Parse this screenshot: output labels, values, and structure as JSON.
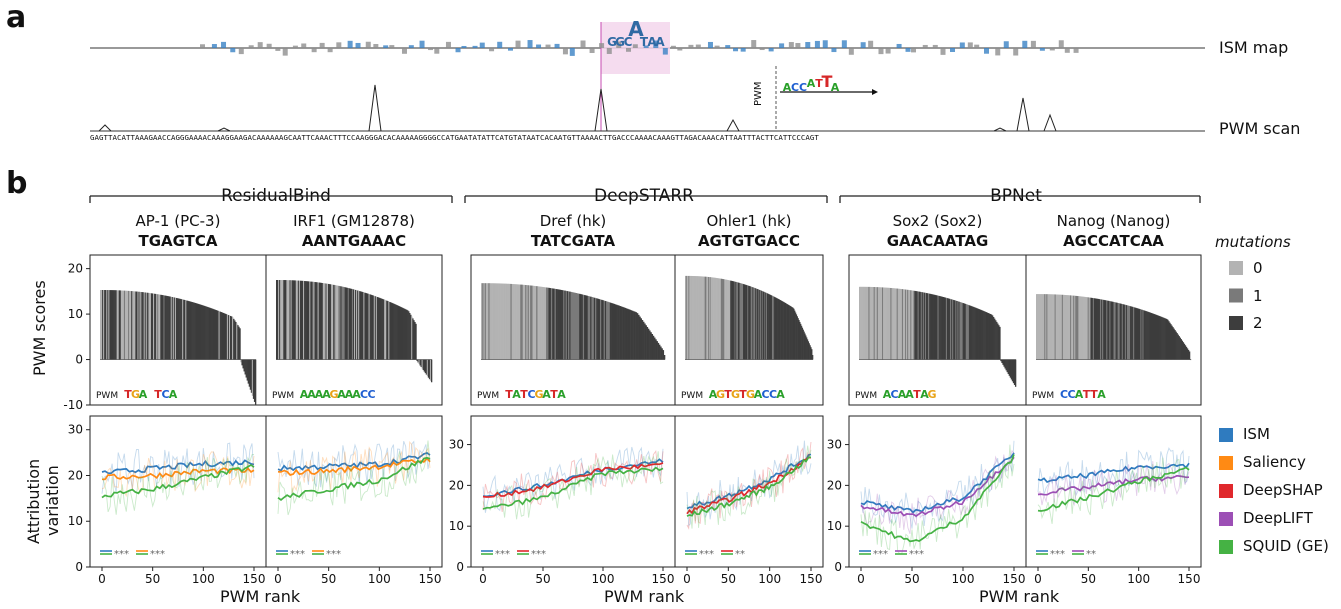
{
  "panel_a": {
    "letter": "a",
    "row_labels": [
      "ISM map",
      "PWM scan"
    ],
    "inset_label": "PWM",
    "sequence": "GAGTTACATTAAAGAACCAGGGAAAACAAAGGAAGACAAAAAAGCAATTCAAACTTTCCAAGGGACACAAAAAGGGGCCATGAATATATTCATGTATAATCACAATGTTAAAACTTGACCCAAAACAAAGTTAGACAAACATTAATTTACTTCATTCCCAGT"
  },
  "panel_b": {
    "letter": "b",
    "groups": [
      "ResidualBind",
      "DeepSTARR",
      "BPNet"
    ],
    "columns": [
      {
        "title": "AP-1 (PC-3)",
        "motif": "TGAGTCA",
        "logo": "TGA TCA"
      },
      {
        "title": "IRF1 (GM12878)",
        "motif": "AANTGAAAC",
        "logo": "AAAAGAAACC"
      },
      {
        "title": "Dref (hk)",
        "motif": "TATCGATA",
        "logo": "TATCGATA"
      },
      {
        "title": "Ohler1 (hk)",
        "motif": "AGTGTGACC",
        "logo": "AGTGTGACCA"
      },
      {
        "title": "Sox2 (Sox2)",
        "motif": "GAACAATAG",
        "logo": "ACAATAG"
      },
      {
        "title": "Nanog (Nanog)",
        "motif": "AGCCATCAA",
        "logo": "CCATTA"
      }
    ],
    "pwm_label": "PWM",
    "top_ylabel": "PWM scores",
    "bottom_ylabel_lines": [
      "Attribution",
      "variation"
    ],
    "xlabel": "PWM rank",
    "mutations_title": "mutations",
    "mutations_levels": [
      "0",
      "1",
      "2"
    ],
    "mutation_colors": [
      "#b3b3b3",
      "#7a7a7a",
      "#3d3d3d"
    ],
    "methods": [
      {
        "name": "ISM",
        "color": "#2f7bbf"
      },
      {
        "name": "Saliency",
        "color": "#ff8a14"
      },
      {
        "name": "DeepSHAP",
        "color": "#e0282c"
      },
      {
        "name": "DeepLIFT",
        "color": "#9c4fb5"
      },
      {
        "name": "SQUID (GE)",
        "color": "#45b244"
      }
    ],
    "significance": [
      [
        "***",
        "***"
      ],
      [
        "***",
        "***"
      ],
      [
        "***",
        "***"
      ],
      [
        "***",
        "**"
      ],
      [
        "***",
        "***"
      ],
      [
        "***",
        "**"
      ]
    ]
  },
  "chart_data": [
    {
      "type": "bar",
      "title": "PWM scores",
      "ylim": [
        -10,
        23
      ],
      "yticks": [
        -10,
        0,
        10,
        20
      ],
      "series": [
        {
          "name": "AP-1 (PC-3)",
          "n": 150,
          "start": 15.3,
          "end": -10
        },
        {
          "name": "IRF1 (GM12878)",
          "n": 150,
          "start": 17.5,
          "end": -5
        },
        {
          "name": "Dref (hk)",
          "n": 150,
          "start": 16.8,
          "end": 1
        },
        {
          "name": "Ohler1 (hk)",
          "n": 150,
          "start": 18.4,
          "end": 1
        },
        {
          "name": "Sox2 (Sox2)",
          "n": 150,
          "start": 16.0,
          "end": -6
        },
        {
          "name": "Nanog (Nanog)",
          "n": 150,
          "start": 14.4,
          "end": 0
        }
      ]
    },
    {
      "type": "line",
      "xlabel": "PWM rank",
      "ylabel": "Attribution variation",
      "x": [
        0,
        50,
        100,
        150
      ],
      "panels": [
        {
          "ylim": [
            0,
            33
          ],
          "yticks": [
            0,
            10,
            20,
            30
          ],
          "series": [
            {
              "name": "ISM",
              "values": [
                20.5,
                21.5,
                22.5,
                23
              ]
            },
            {
              "name": "Saliency",
              "values": [
                19.5,
                20,
                21,
                21
              ]
            },
            {
              "name": "SQUID (GE)",
              "values": [
                15.5,
                17,
                19.5,
                22
              ]
            }
          ]
        },
        {
          "ylim": [
            0,
            33
          ],
          "yticks": [
            0,
            10,
            20,
            30
          ],
          "series": [
            {
              "name": "ISM",
              "values": [
                21.5,
                22,
                22.5,
                24.5
              ]
            },
            {
              "name": "Saliency",
              "values": [
                20.5,
                21,
                22,
                23.5
              ]
            },
            {
              "name": "SQUID (GE)",
              "values": [
                15,
                17,
                19,
                24
              ]
            }
          ]
        },
        {
          "ylim": [
            0,
            37
          ],
          "yticks": [
            0,
            10,
            20,
            30
          ],
          "series": [
            {
              "name": "ISM",
              "values": [
                17.5,
                20,
                24,
                26
              ]
            },
            {
              "name": "DeepSHAP",
              "values": [
                17,
                19.5,
                24,
                25
              ]
            },
            {
              "name": "SQUID (GE)",
              "values": [
                14,
                17,
                23,
                24
              ]
            }
          ]
        },
        {
          "ylim": [
            0,
            37
          ],
          "yticks": [
            0,
            10,
            20,
            30
          ],
          "series": [
            {
              "name": "ISM",
              "values": [
                14.5,
                17.5,
                21.5,
                27.5
              ]
            },
            {
              "name": "DeepSHAP",
              "values": [
                13.5,
                16.5,
                20.5,
                27
              ]
            },
            {
              "name": "SQUID (GE)",
              "values": [
                12.5,
                15.5,
                19.5,
                27
              ]
            }
          ]
        },
        {
          "ylim": [
            0,
            37
          ],
          "yticks": [
            0,
            10,
            20,
            30
          ],
          "series": [
            {
              "name": "ISM",
              "values": [
                16,
                13.5,
                17,
                28
              ]
            },
            {
              "name": "DeepLIFT",
              "values": [
                15,
                12.5,
                16,
                27
              ]
            },
            {
              "name": "SQUID (GE)",
              "values": [
                11,
                6,
                12,
                27
              ]
            }
          ]
        },
        {
          "ylim": [
            0,
            37
          ],
          "yticks": [
            0,
            10,
            20,
            30
          ],
          "series": [
            {
              "name": "ISM",
              "values": [
                21,
                22.5,
                24.5,
                25
              ]
            },
            {
              "name": "DeepLIFT",
              "values": [
                18,
                19.5,
                21.5,
                22
              ]
            },
            {
              "name": "SQUID (GE)",
              "values": [
                14,
                17,
                21,
                24
              ]
            }
          ]
        }
      ]
    }
  ]
}
